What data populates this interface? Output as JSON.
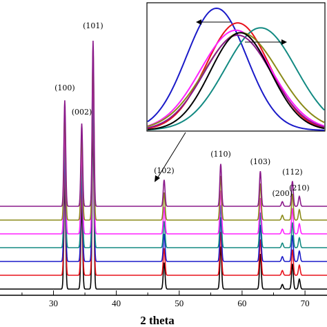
{
  "chart_data": {
    "type": "line",
    "xlabel": "2 theta",
    "ylabel": "",
    "xlim": [
      21.5,
      73.5
    ],
    "x_ticks": [
      "30",
      "40",
      "50",
      "60",
      "70"
    ],
    "grid": false,
    "legend": "none",
    "series": [
      {
        "color": "#000000",
        "offset": 0
      },
      {
        "color": "#e8101a",
        "offset": 1
      },
      {
        "color": "#1a1ac8",
        "offset": 2
      },
      {
        "color": "#128a82",
        "offset": 3
      },
      {
        "color": "#ff20ff",
        "offset": 4
      },
      {
        "color": "#8a8a18",
        "offset": 5
      },
      {
        "color": "#8a1a8a",
        "offset": 6
      }
    ],
    "peaks": [
      {
        "label": "(100)",
        "x": 31.8,
        "height": 160
      },
      {
        "label": "(002)",
        "x": 34.5,
        "height": 125
      },
      {
        "label": "(101)",
        "x": 36.3,
        "height": 250
      },
      {
        "label": "(102)",
        "x": 47.6,
        "height": 40
      },
      {
        "label": "(110)",
        "x": 56.6,
        "height": 64
      },
      {
        "label": "(103)",
        "x": 62.9,
        "height": 53
      },
      {
        "label": "(200)",
        "x": 66.4,
        "height": 7
      },
      {
        "label": "(112)",
        "x": 68.0,
        "height": 38
      },
      {
        "label": "(210)",
        "x": 69.1,
        "height": 15
      }
    ],
    "inset": {
      "description_peak": "(101)",
      "curves": [
        {
          "color": "#1a1ac8",
          "center": -0.22,
          "height": 1.0,
          "width": 0.34
        },
        {
          "color": "#e8101a",
          "center": 0.02,
          "height": 0.88,
          "width": 0.36
        },
        {
          "color": "#128a82",
          "center": 0.28,
          "height": 0.84,
          "width": 0.4
        },
        {
          "color": "#ff20ff",
          "center": 0.0,
          "height": 0.82,
          "width": 0.4
        },
        {
          "color": "#8a8a18",
          "center": 0.06,
          "height": 0.8,
          "width": 0.42
        },
        {
          "color": "#8a1a8a",
          "center": 0.02,
          "height": 0.78,
          "width": 0.38
        },
        {
          "color": "#000000",
          "center": 0.05,
          "height": 0.8,
          "width": 0.34
        }
      ]
    }
  }
}
